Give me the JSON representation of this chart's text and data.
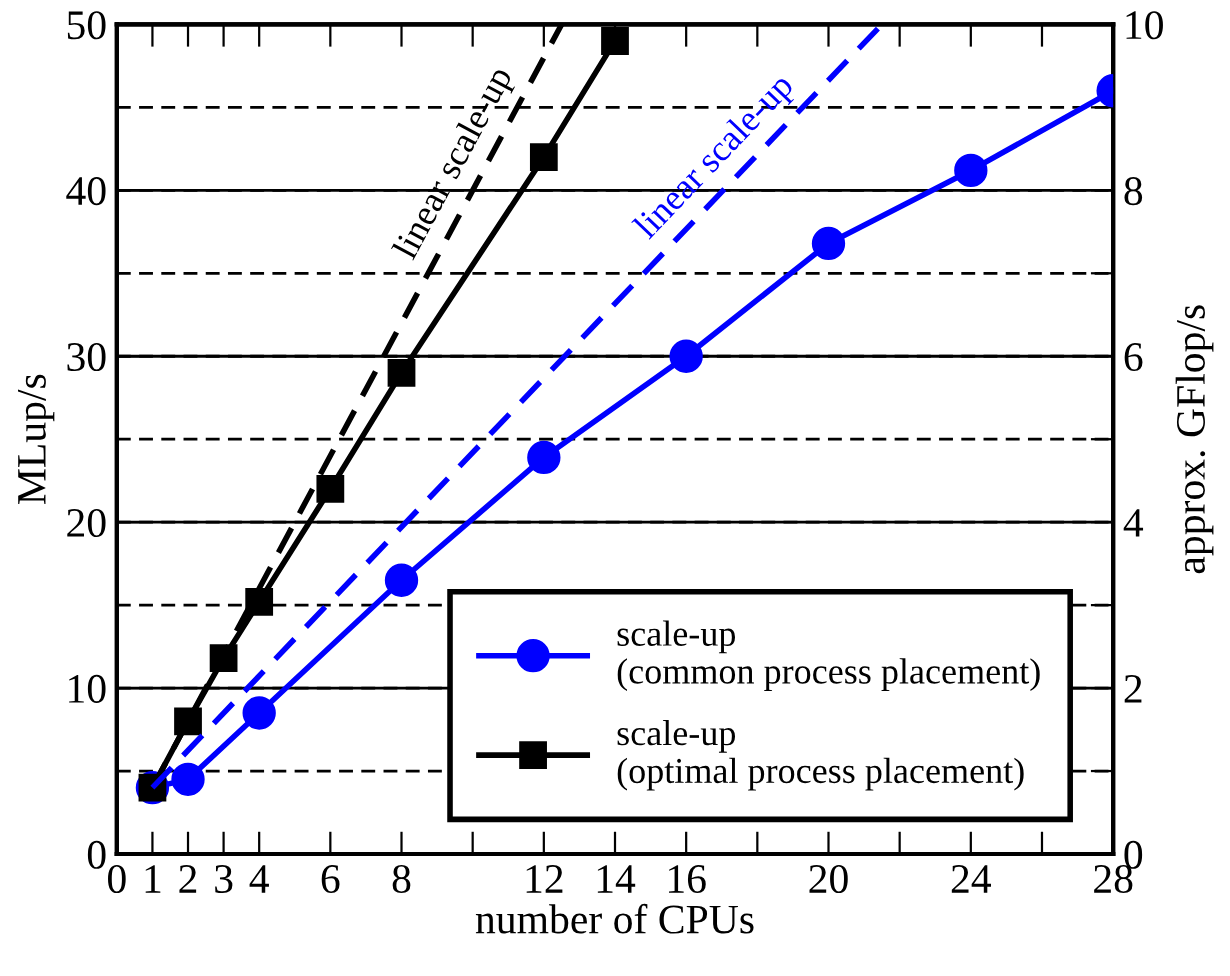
{
  "chart_data": {
    "type": "line",
    "xlabel": "number of CPUs",
    "ylabel": "MLup/s",
    "y2label": "approx. GFlop/s",
    "xlim": [
      0,
      28
    ],
    "xticks": [
      0,
      1,
      2,
      3,
      4,
      6,
      8,
      {
        "value": 10,
        "label": null
      },
      12,
      14,
      16,
      {
        "value": 18,
        "label": null
      },
      20,
      {
        "value": 22,
        "label": null
      },
      24,
      {
        "value": 26,
        "label": null
      },
      28
    ],
    "ylim": [
      0,
      50
    ],
    "yticks": [
      0,
      10,
      20,
      30,
      40,
      50
    ],
    "y2lim": [
      0,
      10
    ],
    "y2ticks": [
      0,
      {
        "value": 1,
        "label": null
      },
      2,
      {
        "value": 3,
        "label": null
      },
      4,
      {
        "value": 5,
        "label": null
      },
      6,
      {
        "value": 7,
        "label": null
      },
      8,
      {
        "value": 9,
        "label": null
      },
      10
    ],
    "grid": "y",
    "legend": "bottom right",
    "series": [
      {
        "name": "scale-up\n(common process placement)",
        "color": "#0000ff",
        "marker": "circle",
        "line_style": "solid",
        "x": [
          1,
          2,
          4,
          8,
          12,
          16,
          20,
          24,
          28
        ],
        "values": [
          4,
          4.5,
          8.5,
          16.5,
          23.9,
          30,
          36.8,
          41.2,
          46
        ]
      },
      {
        "name": "scale-up\n(optimal process placement)",
        "color": "#000000",
        "marker": "square",
        "line_style": "solid",
        "x": [
          1,
          2,
          3,
          4,
          6,
          8,
          12,
          14
        ],
        "values": [
          4,
          8,
          11.8,
          15.2,
          22,
          29,
          42,
          49
        ]
      },
      {
        "color": "#000000",
        "marker": "none",
        "line_style": "dashed",
        "x": [
          1,
          12.5
        ],
        "values": [
          4,
          50
        ]
      },
      {
        "color": "#0000ff",
        "marker": "none",
        "line_style": "dashed",
        "x": [
          1,
          21.5
        ],
        "values": [
          4,
          50
        ]
      }
    ],
    "annotations": [
      "linear scale-up",
      "linear scale-up"
    ]
  }
}
